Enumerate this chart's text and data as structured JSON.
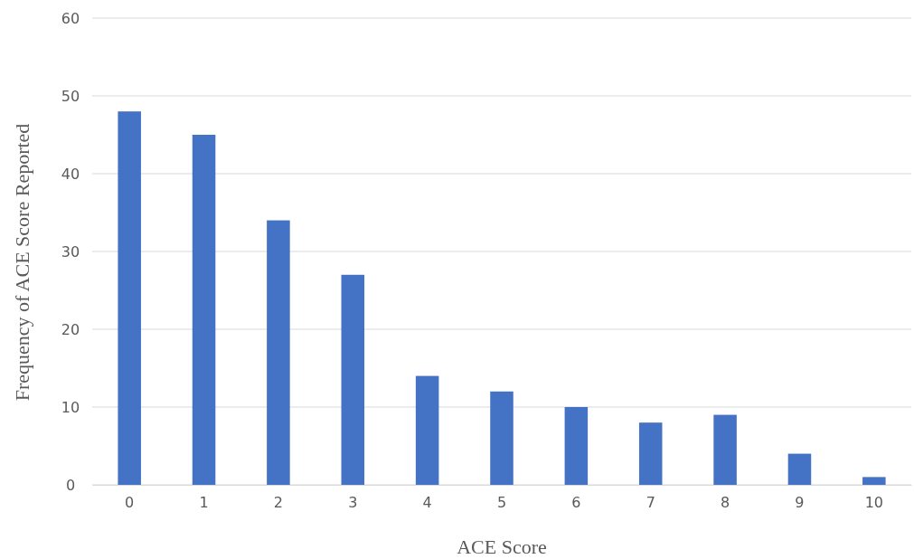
{
  "chart_data": {
    "type": "bar",
    "xlabel": "ACE Score",
    "ylabel": "Frequency of ACE Score Reported",
    "categories": [
      "0",
      "1",
      "2",
      "3",
      "4",
      "5",
      "6",
      "7",
      "8",
      "9",
      "10"
    ],
    "values": [
      48,
      45,
      34,
      27,
      14,
      12,
      10,
      8,
      9,
      4,
      1
    ],
    "color": "#4472c4",
    "ylim": [
      0,
      60
    ],
    "yticks": [
      0,
      10,
      20,
      30,
      40,
      50,
      60
    ],
    "grid": "y"
  }
}
